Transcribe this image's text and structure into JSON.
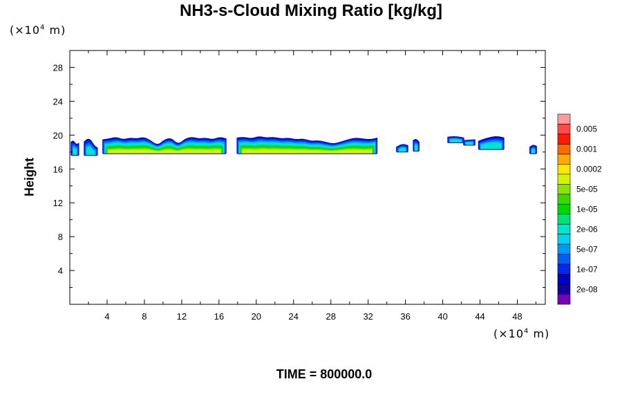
{
  "chart_data": {
    "type": "contour",
    "title": "NH3-s-Cloud Mixing Ratio [kg/kg]",
    "ylabel": "Height",
    "y_unit": "(×10",
    "x_unit": "(×10",
    "unit_exp": "4",
    "unit_tail": " m)",
    "xlim": [
      0,
      51
    ],
    "ylim": [
      0,
      30
    ],
    "x_ticks": [
      "4",
      "8",
      "12",
      "16",
      "20",
      "24",
      "28",
      "32",
      "36",
      "40",
      "44",
      "48"
    ],
    "y_ticks": [
      "4",
      "8",
      "12",
      "16",
      "20",
      "24",
      "28"
    ],
    "x_tick_values": [
      4,
      8,
      12,
      16,
      20,
      24,
      28,
      32,
      36,
      40,
      44,
      48
    ],
    "y_tick_values": [
      4,
      8,
      12,
      16,
      20,
      24,
      28
    ],
    "colorbar": {
      "labels": [
        "0.005",
        "0.001",
        "0.0002",
        "5e-05",
        "1e-05",
        "2e-06",
        "5e-07",
        "1e-07",
        "2e-08"
      ],
      "colors": [
        "#ff9a9a",
        "#ff4a4a",
        "#ff1a00",
        "#ff6a00",
        "#ffaa00",
        "#ffe600",
        "#d2f500",
        "#8ae600",
        "#3cd600",
        "#00d600",
        "#00e07a",
        "#00e6c8",
        "#00d2f5",
        "#009af5",
        "#005ef5",
        "#0028f0",
        "#0000c8",
        "#1400a0",
        "#7800b4"
      ]
    },
    "cloud_layers": [
      {
        "x_start": 0.1,
        "x_end": 1.0,
        "z_bottom": 17.6,
        "z_top": 19.4,
        "tops": [
          19.2,
          19.4,
          18.9,
          19.1
        ]
      },
      {
        "x_start": 1.5,
        "x_end": 3.0,
        "z_bottom": 17.6,
        "z_top": 19.6,
        "tops": [
          19.2,
          19.6,
          19.5,
          18.8,
          18.5
        ]
      },
      {
        "x_start": 3.5,
        "x_end": 16.8,
        "z_bottom": 17.8,
        "z_top": 19.8,
        "tops": [
          19.5,
          19.6,
          19.8,
          19.5,
          19.7,
          19.6,
          19.8,
          19.4,
          18.8,
          19.5,
          19.7,
          18.9,
          19.6,
          19.8,
          19.6,
          19.7,
          19.5,
          19.8,
          19.6
        ]
      },
      {
        "x_start": 17.9,
        "x_end": 33.0,
        "z_bottom": 17.8,
        "z_top": 19.9,
        "tops": [
          19.7,
          19.8,
          19.6,
          19.9,
          19.7,
          19.8,
          19.6,
          19.7,
          19.5,
          19.6,
          19.3,
          19.4,
          19.2,
          19.0,
          19.2,
          19.5,
          19.7,
          19.6,
          19.5,
          19.7
        ]
      },
      {
        "x_start": 35.0,
        "x_end": 36.3,
        "z_bottom": 18.0,
        "z_top": 19.3,
        "tops": [
          18.6,
          19.0,
          18.8
        ]
      },
      {
        "x_start": 36.8,
        "x_end": 37.5,
        "z_bottom": 18.1,
        "z_top": 19.6,
        "tops": [
          19.4,
          19.6,
          19.2
        ]
      },
      {
        "x_start": 40.5,
        "x_end": 42.3,
        "z_bottom": 19.1,
        "z_top": 19.9,
        "tops": [
          19.8,
          19.9,
          19.7
        ]
      },
      {
        "x_start": 42.2,
        "x_end": 43.5,
        "z_bottom": 18.8,
        "z_top": 19.5,
        "tops": [
          19.4,
          19.5
        ]
      },
      {
        "x_start": 43.8,
        "x_end": 46.6,
        "z_bottom": 18.3,
        "z_top": 19.9,
        "tops": [
          19.3,
          19.6,
          19.8,
          19.9,
          19.7
        ]
      },
      {
        "x_start": 49.3,
        "x_end": 50.1,
        "z_bottom": 17.8,
        "z_top": 18.9,
        "tops": [
          18.6,
          18.9,
          18.7
        ]
      }
    ]
  },
  "footer": {
    "time_label": "TIME = 800000.0"
  }
}
